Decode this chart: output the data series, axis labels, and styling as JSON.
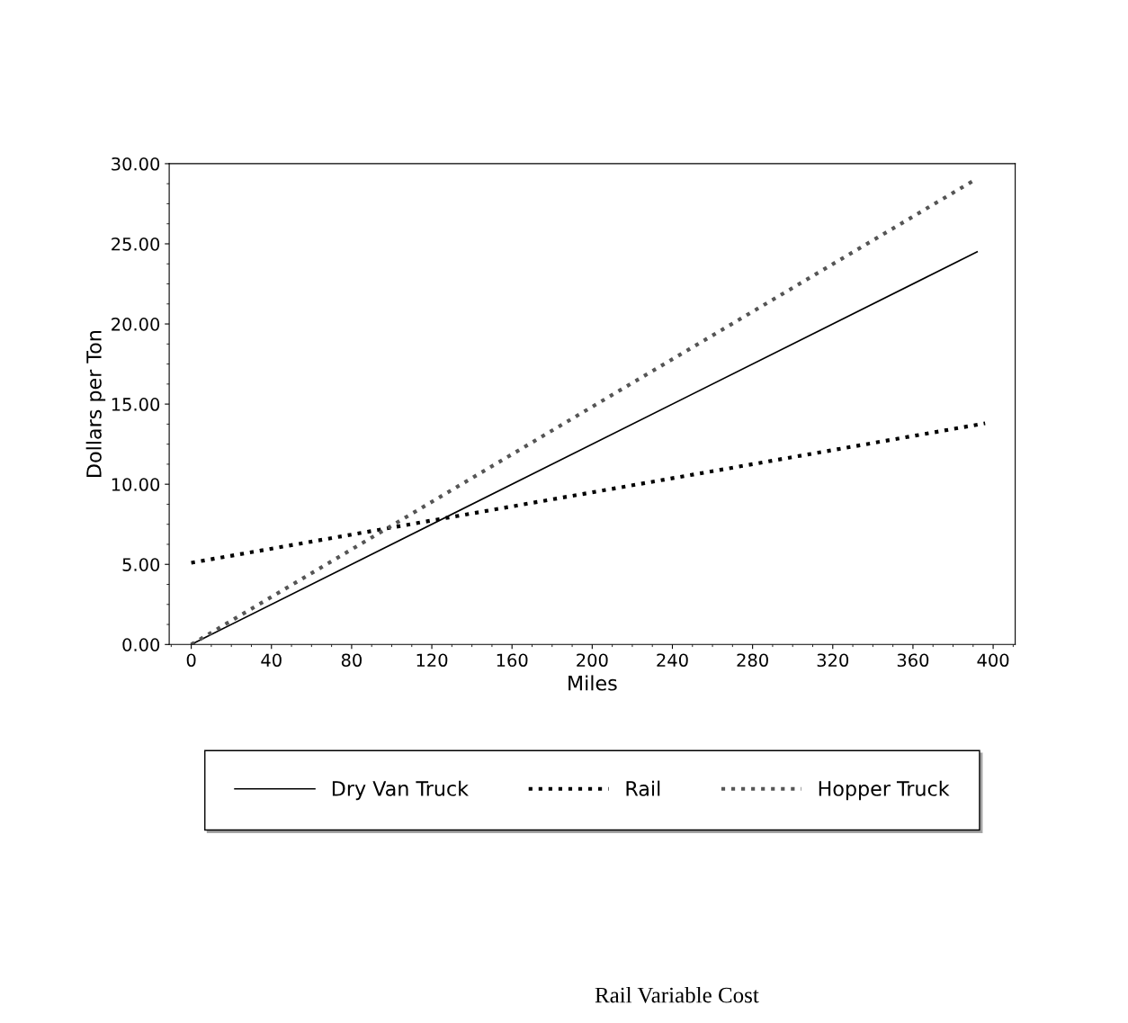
{
  "chart_data": {
    "type": "line",
    "xlabel": "Miles",
    "ylabel": "Dollars per Ton",
    "series": [
      {
        "name": "Dry Van Truck",
        "color": "#000000",
        "line_style": "solid",
        "x": [
          0,
          392
        ],
        "values": [
          0,
          24.5
        ]
      },
      {
        "name": "Rail",
        "color": "#000000",
        "line_style": "dotted",
        "x": [
          0,
          396
        ],
        "values": [
          5.1,
          13.8
        ]
      },
      {
        "name": "Hopper Truck",
        "color": "#555555",
        "line_style": "dotted",
        "x": [
          0,
          391
        ],
        "values": [
          0,
          29.0
        ]
      }
    ],
    "xlim": [
      -11,
      411
    ],
    "xticks": [
      0,
      40,
      80,
      120,
      160,
      200,
      240,
      280,
      320,
      360,
      400
    ],
    "ylim": [
      0,
      30
    ],
    "yticks": [
      {
        "value": 0,
        "label": "0.00"
      },
      {
        "value": 5,
        "label": "5.00"
      },
      {
        "value": 10,
        "label": "10.00"
      },
      {
        "value": 15,
        "label": "15.00"
      },
      {
        "value": 20,
        "label": "20.00"
      },
      {
        "value": 25,
        "label": "25.00"
      },
      {
        "value": 30,
        "label": "30.00"
      }
    ],
    "grid": false,
    "legend": "bottom",
    "marker": "none",
    "annotations": [
      "Rail Variable Cost"
    ]
  }
}
